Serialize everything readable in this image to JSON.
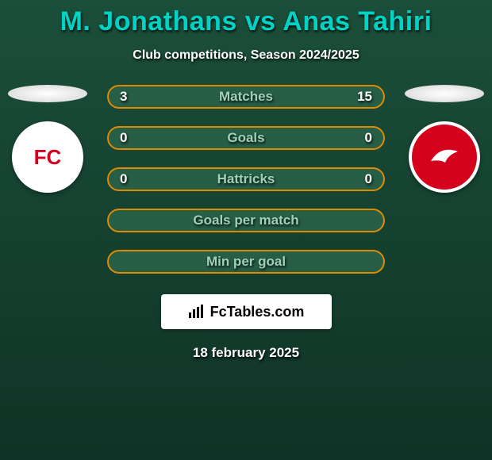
{
  "background_gradient": {
    "from": "#1b4f3a",
    "to": "#0f3326"
  },
  "title": "M. Jonathans vs Anas Tahiri",
  "title_color": "#00d3c5",
  "subtitle": "Club competitions, Season 2024/2025",
  "subtitle_color": "#ffffff",
  "row_fill": "#275e46",
  "row_border": "#e08a00",
  "row_border_width": 2,
  "row_label_color": "#9fd0b8",
  "row_value_color": "#ffffff",
  "rows": [
    {
      "label": "Matches",
      "left": "3",
      "right": "15"
    },
    {
      "label": "Goals",
      "left": "0",
      "right": "0"
    },
    {
      "label": "Hattricks",
      "left": "0",
      "right": "0"
    },
    {
      "label": "Goals per match",
      "left": "",
      "right": ""
    },
    {
      "label": "Min per goal",
      "left": "",
      "right": ""
    }
  ],
  "left_club": {
    "name": "fc-utrecht-badge",
    "bg": "#ffffff",
    "accent": "#d4021d",
    "text": "FC"
  },
  "right_club": {
    "name": "almere-city-badge",
    "bg": "#d4021d",
    "accent": "#ffffff",
    "text": ""
  },
  "brand": "FcTables.com",
  "date": "18 february 2025",
  "date_color": "#ffffff"
}
